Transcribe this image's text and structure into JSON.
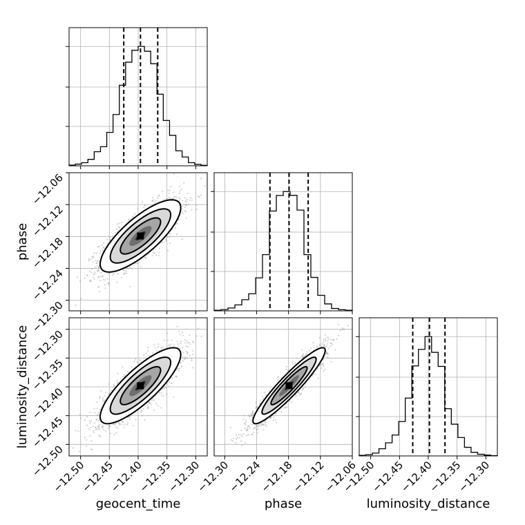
{
  "chart_data": {
    "type": "corner",
    "parameters": [
      "geocent_time",
      "phase",
      "luminosity_distance"
    ],
    "grid": true,
    "histograms": [
      {
        "parameter": "geocent_time",
        "range": [
          -12.52,
          -12.28
        ],
        "quantiles": [
          -12.425,
          -12.396,
          -12.366
        ],
        "counts": [
          0.6,
          1.4,
          2.6,
          5.4,
          11.8,
          16.0,
          28.0,
          43.0,
          67.5,
          86.8,
          96.8,
          100.0,
          96.0,
          85.5,
          60.0,
          38.0,
          25.5,
          12.5,
          7.4,
          2.6,
          1.2,
          0.4
        ]
      },
      {
        "parameter": "phase",
        "range": [
          -12.32,
          -12.06
        ],
        "quantiles": [
          -12.215,
          -12.179,
          -12.143
        ],
        "counts": [
          0.5,
          1.0,
          2.4,
          5.0,
          9.3,
          14.3,
          27.6,
          47.0,
          83.5,
          96.5,
          99.8,
          96.6,
          84.3,
          47.0,
          28.0,
          13.0,
          5.8,
          2.0,
          1.0,
          0.5
        ]
      },
      {
        "parameter": "luminosity_distance",
        "range": [
          -12.52,
          -12.28
        ],
        "quantiles": [
          -12.427,
          -12.398,
          -12.371
        ],
        "counts": [
          0.5,
          1.0,
          2.4,
          6.0,
          11.0,
          17.5,
          28.8,
          48.5,
          75.4,
          89.3,
          100.0,
          86.8,
          75.0,
          39.6,
          26.6,
          15.4,
          7.2,
          3.0,
          1.4,
          0.7,
          0.2
        ]
      }
    ],
    "scatter_2d": [
      {
        "x": "geocent_time",
        "y": "phase",
        "xlim": [
          -12.52,
          -12.28
        ],
        "ylim": [
          -12.32,
          -12.06
        ],
        "center": [
          -12.396,
          -12.179
        ],
        "sigma": [
          0.035,
          0.034
        ],
        "correlation": 0.78
      },
      {
        "x": "geocent_time",
        "y": "luminosity_distance",
        "xlim": [
          -12.52,
          -12.28
        ],
        "ylim": [
          -12.52,
          -12.28
        ],
        "center": [
          -12.396,
          -12.398
        ],
        "sigma": [
          0.035,
          0.033
        ],
        "correlation": 0.82
      },
      {
        "x": "phase",
        "y": "luminosity_distance",
        "xlim": [
          -12.32,
          -12.06
        ],
        "ylim": [
          -12.52,
          -12.28
        ],
        "center": [
          -12.179,
          -12.398
        ],
        "sigma": [
          0.034,
          0.033
        ],
        "correlation": 0.93
      }
    ],
    "ticks": {
      "geocent_time": {
        "values": [
          -12.5,
          -12.45,
          -12.4,
          -12.35,
          -12.3
        ],
        "labels": [
          "−12.50",
          "−12.45",
          "−12.40",
          "−12.35",
          "−12.30"
        ]
      },
      "phase": {
        "values": [
          -12.3,
          -12.24,
          -12.18,
          -12.12,
          -12.06
        ],
        "labels": [
          "−12.30",
          "−12.24",
          "−12.18",
          "−12.12",
          "−12.06"
        ]
      },
      "luminosity_distance": {
        "values": [
          -12.5,
          -12.45,
          -12.4,
          -12.35,
          -12.3
        ],
        "labels": [
          "−12.50",
          "−12.45",
          "−12.40",
          "−12.35",
          "−12.30"
        ]
      }
    }
  }
}
